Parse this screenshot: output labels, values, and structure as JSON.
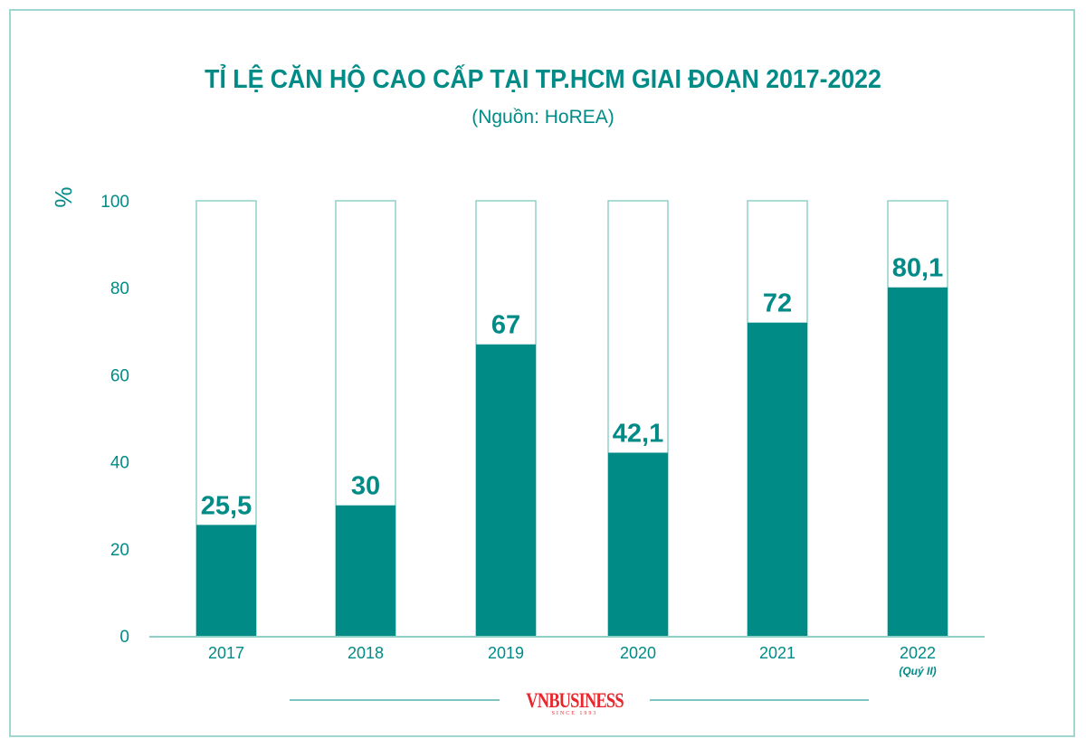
{
  "chart_data": {
    "type": "bar",
    "title": "TỈ LỆ CĂN HỘ CAO CẤP TẠI TP.HCM GIAI ĐOẠN 2017-2022",
    "subtitle": "(Nguồn: HoREA)",
    "ylabel": "%",
    "ylim": [
      0,
      100
    ],
    "yticks": [
      "0",
      "20",
      "40",
      "60",
      "80",
      "100"
    ],
    "categories": [
      "2017",
      "2018",
      "2019",
      "2020",
      "2021",
      "2022"
    ],
    "category_notes": [
      "",
      "",
      "",
      "",
      "",
      "(Quý II)"
    ],
    "values": [
      25.5,
      30,
      67,
      42.1,
      72,
      80.1
    ],
    "data_labels": [
      "25,5",
      "30",
      "67",
      "42,1",
      "72",
      "80,1"
    ],
    "grid": false,
    "colors": {
      "bar": "#008b87",
      "outline": "#8fd0c8",
      "text": "#008b87",
      "axis": "#8fd0c8"
    }
  },
  "logo": {
    "brand": "VNBUSINESS",
    "tagline": "SINCE 1993"
  }
}
